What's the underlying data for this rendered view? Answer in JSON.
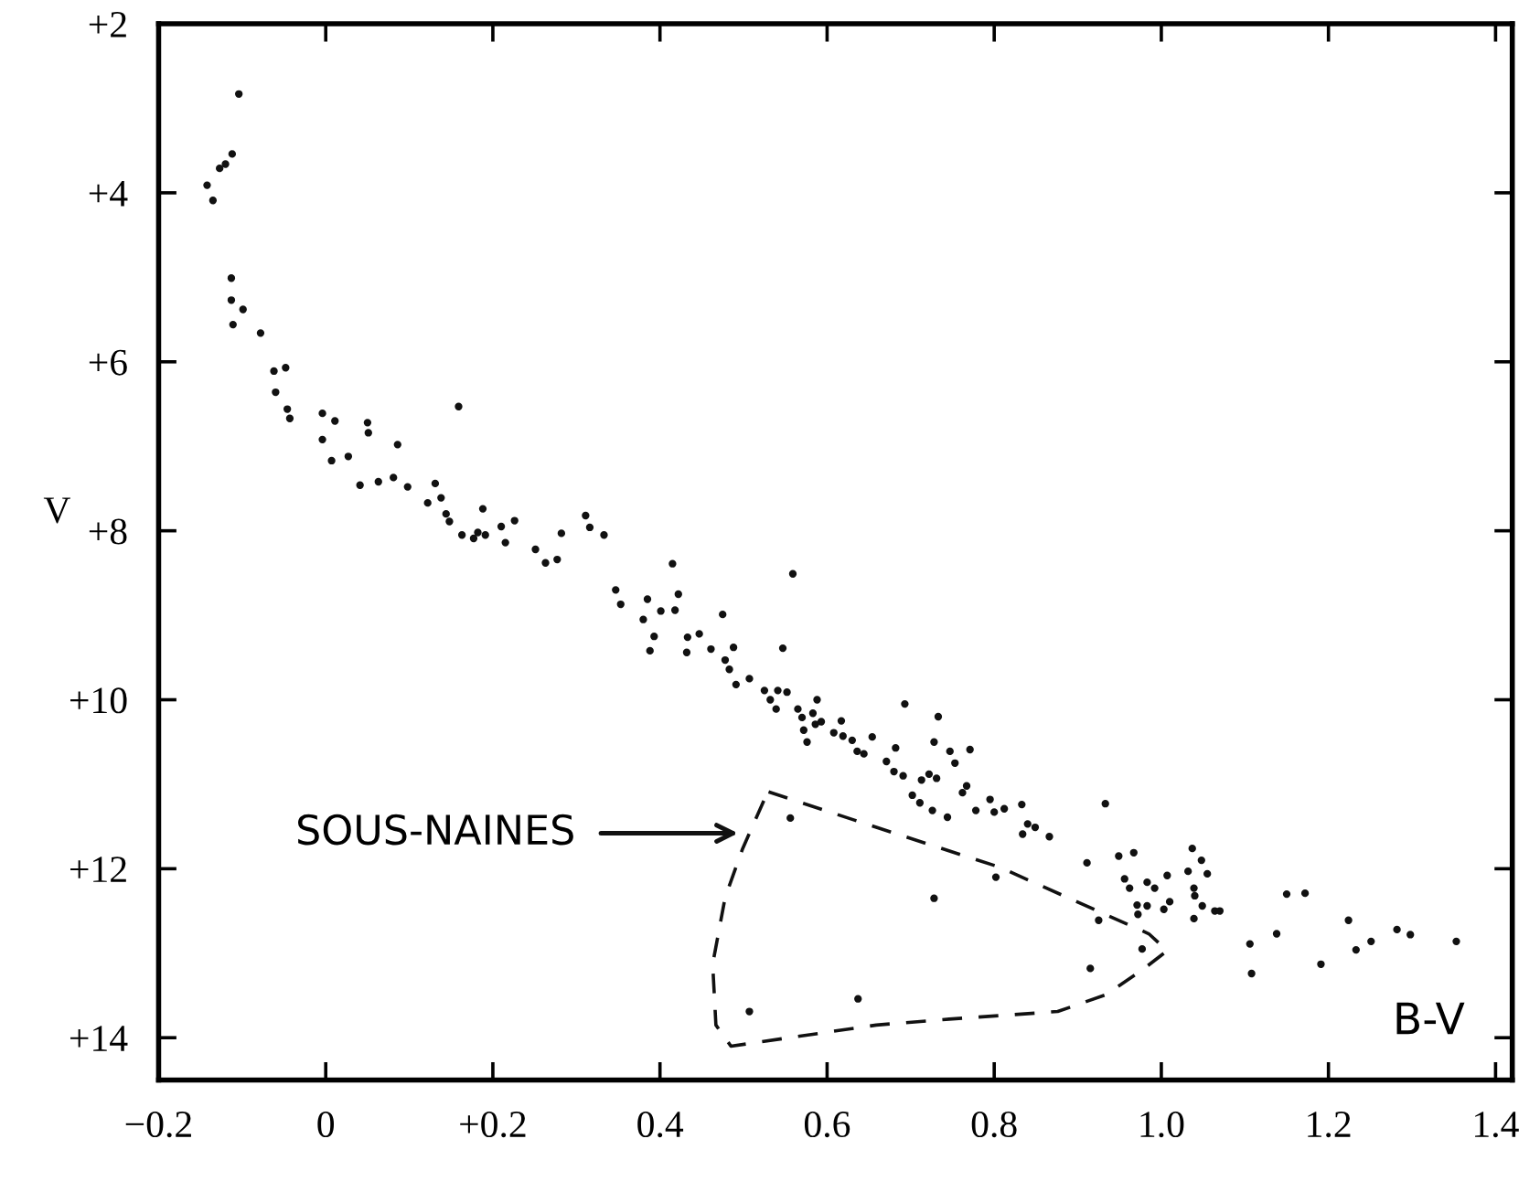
{
  "chart_data": {
    "type": "scatter",
    "xlabel": "B-V",
    "ylabel": "V",
    "xlim": [
      -0.2,
      1.42
    ],
    "ylim": [
      14.5,
      2
    ],
    "xticks": [
      {
        "value": -0.2,
        "label": "−0.2"
      },
      {
        "value": 0,
        "label": "0"
      },
      {
        "value": 0.2,
        "label": "+0.2"
      },
      {
        "value": 0.4,
        "label": "0.4"
      },
      {
        "value": 0.6,
        "label": "0.6"
      },
      {
        "value": 0.8,
        "label": "0.8"
      },
      {
        "value": 1.0,
        "label": "1.0"
      },
      {
        "value": 1.2,
        "label": "1.2"
      },
      {
        "value": 1.4,
        "label": "1.4"
      }
    ],
    "yticks": [
      {
        "value": 2,
        "label": "+2"
      },
      {
        "value": 4,
        "label": "+4"
      },
      {
        "value": 6,
        "label": "+6"
      },
      {
        "value": 8,
        "label": "+8"
      },
      {
        "value": 10,
        "label": "+10"
      },
      {
        "value": 12,
        "label": "+12"
      },
      {
        "value": 14,
        "label": "+14"
      }
    ],
    "grid": false,
    "legend": false,
    "marker": "circle",
    "annotations": [
      "SOUS-NAINES"
    ],
    "series": [
      {
        "color": "#111111",
        "x": [
          -0.104,
          -0.112,
          -0.12,
          -0.127,
          -0.142,
          -0.135,
          -0.113,
          -0.113,
          -0.099,
          -0.111,
          -0.078,
          -0.062,
          -0.048,
          -0.06,
          -0.046,
          -0.043,
          -0.004,
          0.011,
          0.05,
          0.051,
          -0.004,
          0.086,
          0.007,
          0.027,
          0.159,
          0.041,
          0.063,
          0.081,
          0.098,
          0.122,
          0.131,
          0.138,
          0.144,
          0.148,
          0.163,
          0.177,
          0.182,
          0.188,
          0.191,
          0.21,
          0.215,
          0.226,
          0.251,
          0.263,
          0.277,
          0.282,
          0.311,
          0.316,
          0.333,
          0.415,
          0.559,
          0.347,
          0.353,
          0.385,
          0.401,
          0.418,
          0.422,
          0.38,
          0.393,
          0.388,
          0.433,
          0.447,
          0.432,
          0.461,
          0.475,
          0.488,
          0.478,
          0.483,
          0.491,
          0.507,
          0.547,
          0.525,
          0.532,
          0.539,
          0.541,
          0.552,
          0.565,
          0.57,
          0.572,
          0.576,
          0.583,
          0.588,
          0.586,
          0.593,
          0.608,
          0.617,
          0.619,
          0.63,
          0.636,
          0.644,
          0.654,
          0.693,
          0.671,
          0.682,
          0.68,
          0.691,
          0.702,
          0.711,
          0.713,
          0.722,
          0.731,
          0.726,
          0.733,
          0.728,
          0.747,
          0.753,
          0.771,
          0.762,
          0.744,
          0.767,
          0.778,
          0.795,
          0.8,
          0.812,
          0.833,
          0.834,
          0.84,
          0.849,
          0.866,
          0.556,
          0.728,
          0.802,
          0.933,
          0.911,
          0.949,
          0.967,
          0.956,
          0.962,
          0.983,
          0.992,
          0.971,
          0.972,
          0.983,
          1.007,
          1.01,
          1.003,
          1.037,
          1.048,
          1.032,
          1.055,
          1.039,
          1.04,
          1.049,
          1.039,
          1.064,
          1.07,
          0.925,
          0.977,
          0.915,
          1.106,
          1.108,
          1.138,
          1.15,
          1.172,
          1.191,
          1.224,
          1.233,
          1.251,
          1.282,
          1.298,
          1.353,
          0.507,
          0.637
        ],
        "values": [
          2.83,
          3.54,
          3.66,
          3.71,
          3.91,
          4.09,
          5.01,
          5.27,
          5.38,
          5.56,
          5.66,
          6.11,
          6.07,
          6.36,
          6.56,
          6.67,
          6.61,
          6.7,
          6.72,
          6.84,
          6.92,
          6.98,
          7.17,
          7.12,
          6.53,
          7.46,
          7.42,
          7.37,
          7.48,
          7.67,
          7.44,
          7.61,
          7.8,
          7.89,
          8.05,
          8.09,
          8.02,
          7.74,
          8.05,
          7.95,
          8.14,
          7.88,
          8.22,
          8.38,
          8.34,
          8.03,
          7.82,
          7.96,
          8.05,
          8.39,
          8.51,
          8.7,
          8.87,
          8.81,
          8.95,
          8.94,
          8.75,
          9.05,
          9.25,
          9.42,
          9.26,
          9.22,
          9.44,
          9.4,
          8.99,
          9.38,
          9.53,
          9.64,
          9.82,
          9.75,
          9.39,
          9.89,
          10.0,
          10.11,
          9.89,
          9.91,
          10.11,
          10.21,
          10.36,
          10.5,
          10.16,
          10.0,
          10.29,
          10.26,
          10.39,
          10.25,
          10.43,
          10.48,
          10.61,
          10.64,
          10.44,
          10.05,
          10.73,
          10.57,
          10.85,
          10.9,
          11.13,
          11.22,
          10.95,
          10.88,
          10.93,
          11.31,
          10.2,
          10.5,
          10.61,
          10.75,
          10.59,
          11.1,
          11.39,
          11.02,
          11.31,
          11.18,
          11.33,
          11.29,
          11.24,
          11.59,
          11.47,
          11.51,
          11.62,
          11.4,
          12.35,
          12.1,
          11.23,
          11.93,
          11.85,
          11.81,
          12.12,
          12.23,
          12.16,
          12.23,
          12.43,
          12.54,
          12.44,
          12.08,
          12.39,
          12.48,
          11.76,
          11.9,
          12.03,
          12.06,
          12.23,
          12.32,
          12.44,
          12.59,
          12.5,
          12.5,
          12.61,
          12.95,
          13.18,
          12.89,
          13.24,
          12.77,
          12.3,
          12.29,
          13.13,
          12.61,
          12.96,
          12.86,
          12.72,
          12.78,
          12.86,
          13.69,
          13.54
        ]
      }
    ]
  }
}
